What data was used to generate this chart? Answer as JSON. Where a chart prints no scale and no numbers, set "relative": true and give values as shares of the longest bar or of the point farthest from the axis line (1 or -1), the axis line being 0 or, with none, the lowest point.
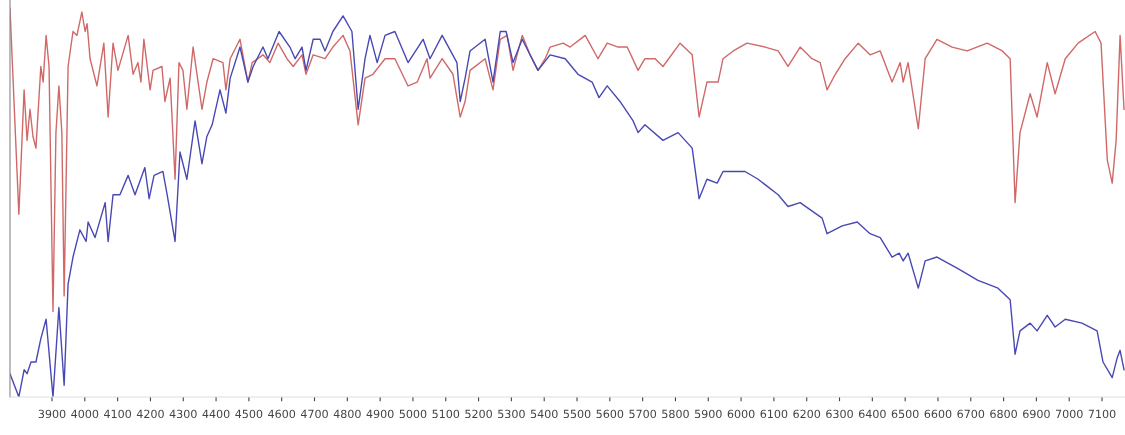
{
  "chart_data": {
    "type": "line",
    "relative": true,
    "xlim": [
      3772,
      7170
    ],
    "xticks": [
      3900,
      4000,
      4100,
      4200,
      4300,
      4400,
      4500,
      4600,
      4700,
      4800,
      4900,
      5000,
      5100,
      5200,
      5300,
      5400,
      5500,
      5600,
      5700,
      5800,
      5900,
      6000,
      6100,
      6200,
      6300,
      6400,
      6500,
      6600,
      6700,
      6800,
      6900,
      7000,
      7100
    ],
    "grid": false,
    "legend": false,
    "marker": "none",
    "line_style": "solid",
    "series": [
      {
        "color": "#d06868",
        "x": [
          3772,
          3799,
          3815,
          3824,
          3833,
          3842,
          3851,
          3866,
          3873,
          3882,
          3891,
          3903,
          3912,
          3921,
          3930,
          3937,
          3949,
          3964,
          3976,
          3991,
          4001,
          4007,
          4016,
          4037,
          4058,
          4071,
          4086,
          4101,
          4132,
          4147,
          4162,
          4171,
          4180,
          4199,
          4208,
          4235,
          4244,
          4260,
          4275,
          4287,
          4299,
          4311,
          4330,
          4357,
          4372,
          4391,
          4421,
          4430,
          4443,
          4473,
          4497,
          4510,
          4543,
          4564,
          4589,
          4616,
          4635,
          4662,
          4674,
          4696,
          4732,
          4756,
          4787,
          4808,
          4833,
          4854,
          4878,
          4915,
          4945,
          4985,
          5013,
          5043,
          5052,
          5089,
          5122,
          5144,
          5159,
          5174,
          5220,
          5244,
          5266,
          5287,
          5305,
          5333,
          5357,
          5381,
          5403,
          5418,
          5458,
          5479,
          5525,
          5564,
          5592,
          5625,
          5653,
          5686,
          5707,
          5738,
          5762,
          5814,
          5851,
          5872,
          5896,
          5930,
          5945,
          5976,
          6018,
          6073,
          6113,
          6143,
          6180,
          6216,
          6241,
          6262,
          6287,
          6317,
          6357,
          6393,
          6424,
          6460,
          6485,
          6494,
          6509,
          6540,
          6561,
          6597,
          6643,
          6689,
          6750,
          6796,
          6820,
          6835,
          6850,
          6881,
          6902,
          6933,
          6957,
          6988,
          7027,
          7079,
          7097,
          7116,
          7131,
          7143,
          7155,
          7167
        ],
        "values": [
          1.0,
          0.47,
          0.79,
          0.66,
          0.74,
          0.67,
          0.64,
          0.85,
          0.81,
          0.93,
          0.85,
          0.22,
          0.68,
          0.8,
          0.68,
          0.26,
          0.85,
          0.94,
          0.93,
          0.99,
          0.94,
          0.96,
          0.87,
          0.8,
          0.91,
          0.72,
          0.91,
          0.84,
          0.93,
          0.83,
          0.86,
          0.81,
          0.92,
          0.79,
          0.84,
          0.85,
          0.76,
          0.82,
          0.56,
          0.86,
          0.84,
          0.74,
          0.9,
          0.74,
          0.81,
          0.87,
          0.86,
          0.79,
          0.87,
          0.92,
          0.81,
          0.86,
          0.88,
          0.86,
          0.91,
          0.87,
          0.85,
          0.88,
          0.83,
          0.88,
          0.87,
          0.9,
          0.93,
          0.89,
          0.7,
          0.82,
          0.83,
          0.87,
          0.87,
          0.8,
          0.81,
          0.87,
          0.82,
          0.87,
          0.83,
          0.72,
          0.76,
          0.84,
          0.87,
          0.79,
          0.92,
          0.93,
          0.84,
          0.93,
          0.88,
          0.84,
          0.87,
          0.9,
          0.91,
          0.9,
          0.93,
          0.87,
          0.91,
          0.9,
          0.9,
          0.84,
          0.87,
          0.87,
          0.85,
          0.91,
          0.88,
          0.72,
          0.81,
          0.81,
          0.87,
          0.89,
          0.91,
          0.9,
          0.89,
          0.85,
          0.9,
          0.87,
          0.86,
          0.79,
          0.83,
          0.87,
          0.91,
          0.88,
          0.89,
          0.81,
          0.86,
          0.81,
          0.86,
          0.69,
          0.87,
          0.92,
          0.9,
          0.89,
          0.91,
          0.89,
          0.87,
          0.5,
          0.68,
          0.78,
          0.72,
          0.86,
          0.78,
          0.87,
          0.91,
          0.94,
          0.91,
          0.61,
          0.55,
          0.66,
          0.93,
          0.74
        ]
      },
      {
        "color": "#4848b4",
        "x": [
          3772,
          3799,
          3815,
          3824,
          3836,
          3851,
          3866,
          3882,
          3903,
          3921,
          3937,
          3949,
          3964,
          3985,
          4004,
          4010,
          4031,
          4062,
          4071,
          4086,
          4107,
          4132,
          4153,
          4183,
          4196,
          4211,
          4238,
          4251,
          4275,
          4290,
          4311,
          4336,
          4357,
          4372,
          4388,
          4412,
          4430,
          4443,
          4473,
          4497,
          4513,
          4543,
          4558,
          4592,
          4625,
          4641,
          4662,
          4674,
          4696,
          4717,
          4732,
          4756,
          4787,
          4814,
          4833,
          4854,
          4869,
          4891,
          4915,
          4945,
          4985,
          5031,
          5052,
          5089,
          5134,
          5144,
          5159,
          5174,
          5220,
          5244,
          5266,
          5284,
          5305,
          5333,
          5381,
          5418,
          5464,
          5503,
          5546,
          5567,
          5592,
          5631,
          5671,
          5686,
          5707,
          5762,
          5808,
          5851,
          5872,
          5896,
          5927,
          5945,
          6012,
          6052,
          6113,
          6143,
          6180,
          6247,
          6262,
          6308,
          6354,
          6393,
          6424,
          6460,
          6482,
          6494,
          6509,
          6540,
          6561,
          6597,
          6661,
          6722,
          6783,
          6820,
          6835,
          6850,
          6881,
          6902,
          6933,
          6957,
          6988,
          7039,
          7085,
          7103,
          7131,
          7146,
          7155,
          7167
        ],
        "values": [
          0.06,
          0.0,
          0.07,
          0.06,
          0.09,
          0.09,
          0.15,
          0.2,
          0.0,
          0.23,
          0.03,
          0.29,
          0.36,
          0.43,
          0.4,
          0.45,
          0.41,
          0.5,
          0.4,
          0.52,
          0.52,
          0.57,
          0.52,
          0.59,
          0.51,
          0.57,
          0.58,
          0.52,
          0.4,
          0.63,
          0.56,
          0.71,
          0.6,
          0.67,
          0.7,
          0.79,
          0.73,
          0.82,
          0.9,
          0.81,
          0.85,
          0.9,
          0.87,
          0.94,
          0.9,
          0.87,
          0.9,
          0.84,
          0.92,
          0.92,
          0.89,
          0.94,
          0.98,
          0.94,
          0.74,
          0.87,
          0.93,
          0.86,
          0.93,
          0.94,
          0.86,
          0.92,
          0.87,
          0.93,
          0.86,
          0.76,
          0.82,
          0.89,
          0.92,
          0.81,
          0.94,
          0.94,
          0.86,
          0.92,
          0.84,
          0.88,
          0.87,
          0.83,
          0.81,
          0.77,
          0.8,
          0.76,
          0.71,
          0.68,
          0.7,
          0.66,
          0.68,
          0.64,
          0.51,
          0.56,
          0.55,
          0.58,
          0.58,
          0.56,
          0.52,
          0.49,
          0.5,
          0.46,
          0.42,
          0.44,
          0.45,
          0.42,
          0.41,
          0.36,
          0.37,
          0.35,
          0.37,
          0.28,
          0.35,
          0.36,
          0.33,
          0.3,
          0.28,
          0.25,
          0.11,
          0.17,
          0.19,
          0.17,
          0.21,
          0.18,
          0.2,
          0.19,
          0.17,
          0.09,
          0.05,
          0.1,
          0.12,
          0.07
        ]
      }
    ]
  }
}
